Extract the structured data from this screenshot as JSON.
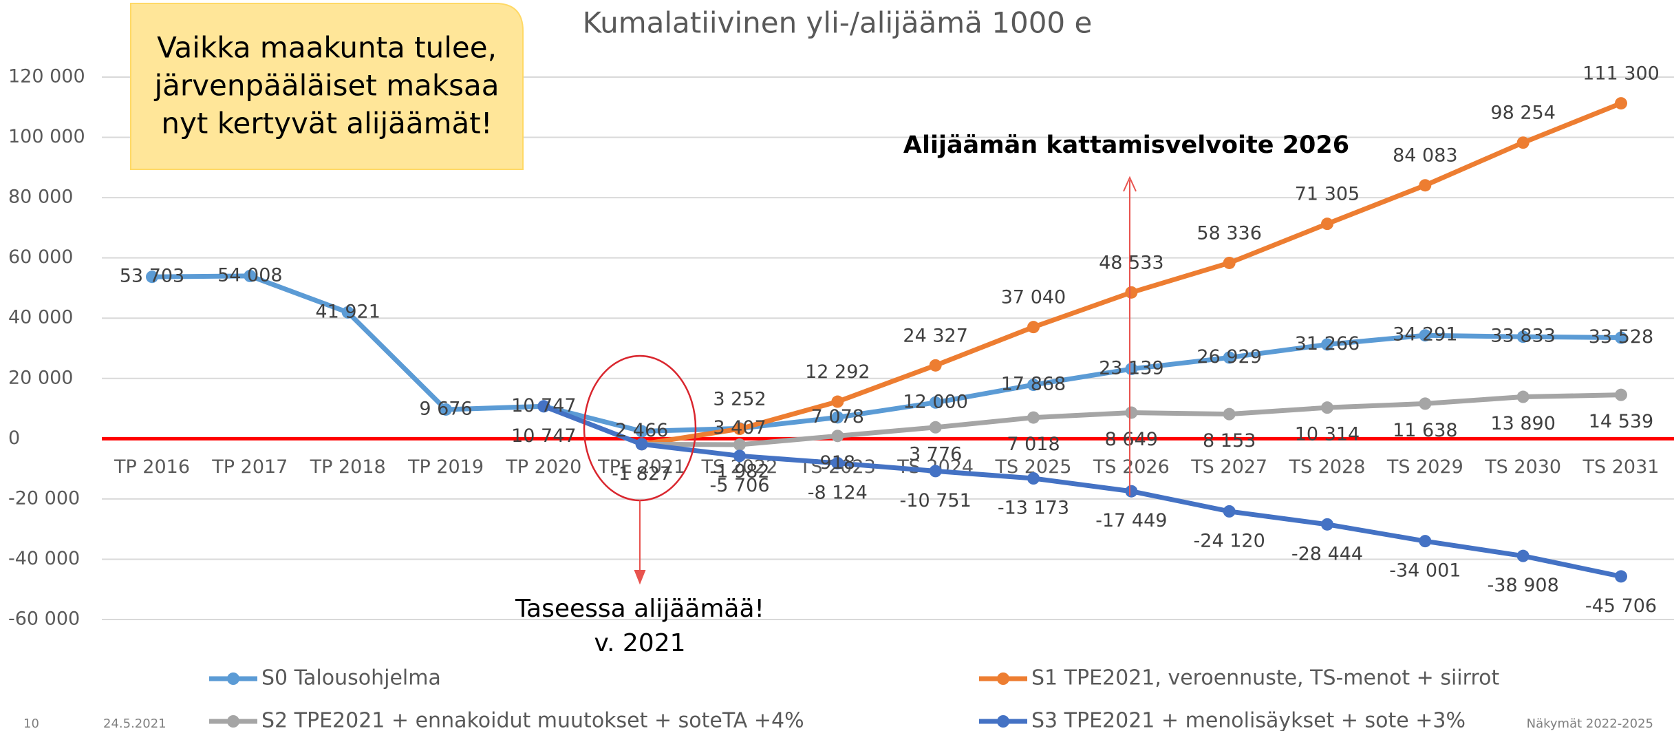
{
  "chart_data": {
    "type": "line",
    "title": "Kumalatiivinen yli-/alijäämä 1000 e",
    "categories": [
      "TP 2016",
      "TP 2017",
      "TP 2018",
      "TP 2019",
      "TP 2020",
      "TPE 2021",
      "TS 2022",
      "TS 2023",
      "TS 2024",
      "TS 2025",
      "TS 2026",
      "TS 2027",
      "TS 2028",
      "TS 2029",
      "TS 2030",
      "TS 2031"
    ],
    "series": [
      {
        "name": "S0 Talousohjelma",
        "color": "#5b9bd5",
        "values": [
          53703,
          54008,
          41921,
          9676,
          10747,
          2466,
          3407,
          7078,
          12000,
          17868,
          23139,
          26929,
          31266,
          34291,
          33833,
          33528
        ],
        "value_labels": [
          "53 703",
          "54 008",
          "41 921",
          "9 676",
          "10 747",
          "2 466",
          "3 407",
          "7 078",
          "12 000",
          "17 868",
          "23 139",
          "26 929",
          "31 266",
          "34 291",
          "33 833",
          "33 528"
        ]
      },
      {
        "name": "S1 TPE2021, veroennuste, TS-menot + siirrot",
        "color": "#ed7d31",
        "values": [
          null,
          null,
          null,
          null,
          null,
          -1827,
          3252,
          12292,
          24327,
          37040,
          48533,
          58336,
          71305,
          84083,
          98254,
          111300
        ],
        "value_labels": [
          null,
          null,
          null,
          null,
          null,
          null,
          "3 252",
          "12 292",
          "24 327",
          "37 040",
          "48 533",
          "58 336",
          "71 305",
          "84 083",
          "98 254",
          "111 300"
        ]
      },
      {
        "name": "S2 TPE2021 + ennakoidut muutokset + soteTA +4%",
        "color": "#a5a5a5",
        "values": [
          null,
          null,
          null,
          null,
          null,
          -1827,
          -1982,
          918,
          3776,
          7018,
          8649,
          8153,
          10314,
          11638,
          13890,
          14539
        ],
        "value_labels": [
          null,
          null,
          null,
          null,
          null,
          null,
          "-1 982",
          "918",
          "3 776",
          "7 018",
          "8 649",
          "8 153",
          "10 314",
          "11 638",
          "13 890",
          "14 539"
        ]
      },
      {
        "name": "S3 TPE2021 + menolisäykset + sote +3%",
        "color": "#4472c4",
        "values": [
          null,
          null,
          null,
          null,
          10747,
          -1827,
          -5706,
          -8124,
          -10751,
          -13173,
          -17449,
          -24120,
          -28444,
          -34001,
          -38908,
          -45706
        ],
        "value_labels": [
          null,
          null,
          null,
          null,
          "10 747",
          "-1 827",
          "-5 706",
          "-8 124",
          "-10 751",
          "-13 173",
          "-17 449",
          "-24 120",
          "-28 444",
          "-34 001",
          "-38 908",
          "-45 706"
        ]
      }
    ],
    "ylim": [
      -60000,
      120000
    ],
    "yticks": [
      {
        "value": -60000,
        "label": "-60 000"
      },
      {
        "value": -40000,
        "label": "-40 000"
      },
      {
        "value": -20000,
        "label": "-20 000"
      },
      0,
      {
        "value": 20000,
        "label": "20 000"
      },
      {
        "value": 40000,
        "label": "40 000"
      },
      {
        "value": 60000,
        "label": "60 000"
      },
      {
        "value": 80000,
        "label": "80 000"
      },
      {
        "value": 100000,
        "label": "100 000"
      },
      {
        "value": 120000,
        "label": "120 000"
      }
    ],
    "grid": true,
    "zero_line_color": "#ff0000",
    "legend": "bottom"
  },
  "callout_lines": [
    "Vaikka maakunta tulee,",
    "järvenpääläiset maksaa",
    "nyt kertyvät alijäämät!"
  ],
  "notes": [
    "Alijäämän kattamisvelvoite 2026",
    "Taseessa alijäämää!",
    "v. 2021"
  ],
  "footer": {
    "page": 10,
    "date": "24.5.2021",
    "right": "Näkymät 2022-2025"
  }
}
